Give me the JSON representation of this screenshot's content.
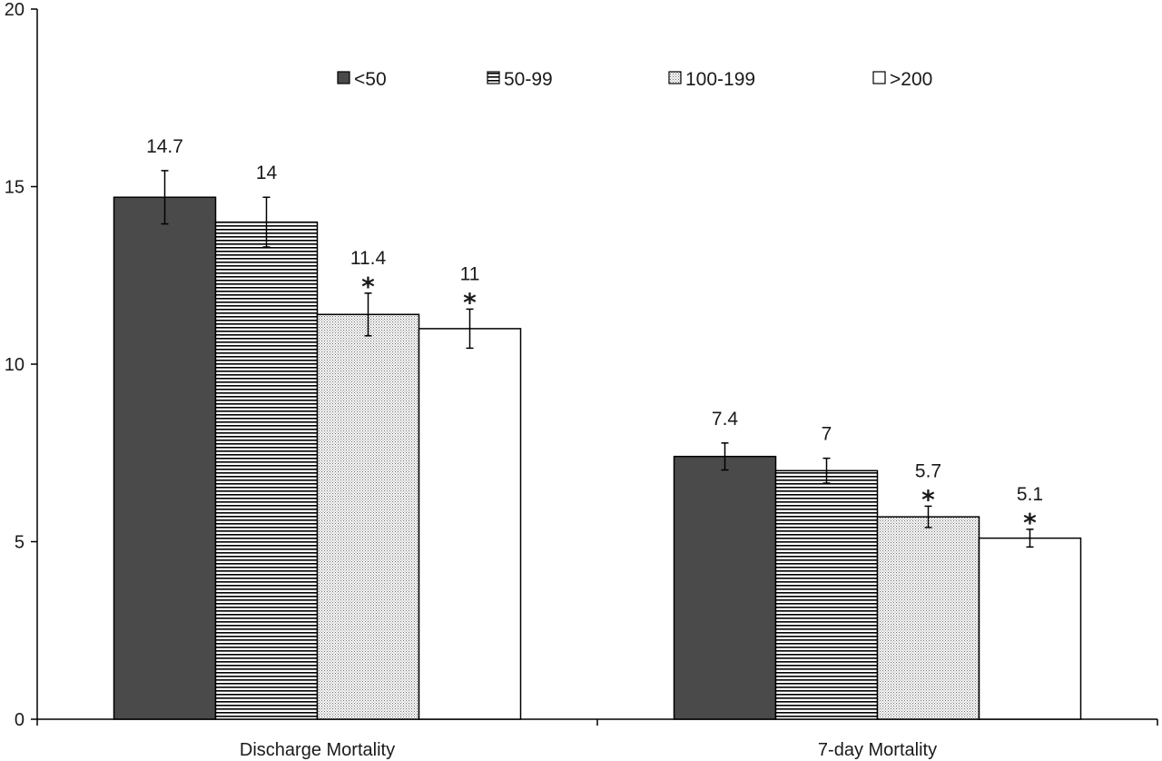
{
  "chart_data": {
    "type": "bar",
    "title": "",
    "xlabel": "",
    "ylabel": "",
    "ylim": [
      0,
      20
    ],
    "yticks": [
      0,
      5,
      10,
      15,
      20
    ],
    "categories": [
      "Discharge Mortality",
      "7-day Mortality"
    ],
    "series": [
      {
        "name": "<50",
        "pattern": "solid-dark",
        "values": [
          14.7,
          7.4
        ],
        "errors": [
          0.75,
          0.38
        ],
        "labels": [
          "14.7",
          "7.4"
        ],
        "significant": [
          false,
          false
        ]
      },
      {
        "name": "50-99",
        "pattern": "horizontal-lines",
        "values": [
          14.0,
          7.0
        ],
        "errors": [
          0.7,
          0.35
        ],
        "labels": [
          "14",
          "7"
        ],
        "significant": [
          false,
          false
        ]
      },
      {
        "name": "100-199",
        "pattern": "dotted",
        "values": [
          11.4,
          5.7
        ],
        "errors": [
          0.6,
          0.3
        ],
        "labels": [
          "11.4",
          "5.7"
        ],
        "significant": [
          true,
          true
        ]
      },
      {
        "name": ">200",
        "pattern": "white",
        "values": [
          11.0,
          5.1
        ],
        "errors": [
          0.55,
          0.25
        ],
        "labels": [
          "11",
          "5.1"
        ],
        "significant": [
          true,
          true
        ]
      }
    ],
    "significance_marker": "*",
    "legend_position": "top",
    "colors": {
      "dark": "#4a4a4a",
      "line": "#000000",
      "light": "#ffffff",
      "dot": "#6a6a6a"
    }
  }
}
